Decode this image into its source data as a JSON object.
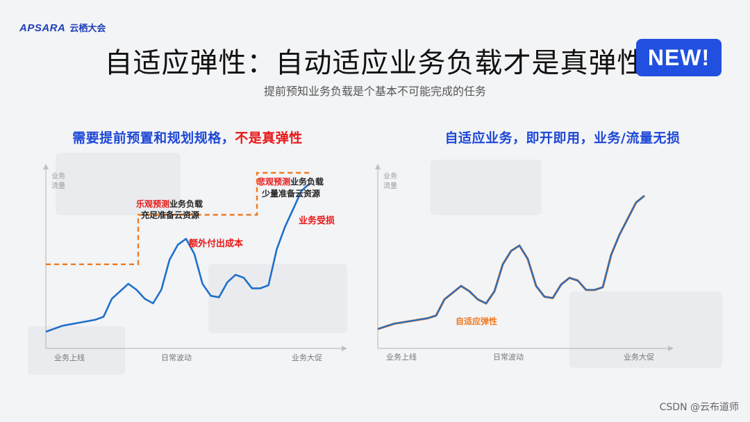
{
  "brand": {
    "mark": "APSARA",
    "name": "云栖大会"
  },
  "title": "自适应弹性：自动适应业务负载才是真弹性",
  "badge": "NEW!",
  "subtitle": "提前预知业务负载是个基本不可能完成的任务",
  "left_panel": {
    "heading_part1": "需要提前预置和规划规格，",
    "heading_part2": "不是真弹性"
  },
  "right_panel": {
    "heading": "自适应业务，即开即用，业务/流量无损"
  },
  "watermark": "CSDN @云布道师",
  "colors": {
    "workload": "#1f6fc9",
    "provision": "#f07a1f",
    "accent_blue": "#1d47d6",
    "accent_red": "#e81616",
    "badge": "#2150e0"
  },
  "chart_data": [
    {
      "type": "line",
      "ylabel": [
        "业务",
        "流量"
      ],
      "x_labels": [
        "业务上线",
        "日常波动",
        "业务大促"
      ],
      "series": [
        {
          "name": "",
          "style": "solid",
          "color": "#1f6fc9",
          "values": [
            0.0,
            0.02,
            0.04,
            0.05,
            0.06,
            0.07,
            0.08,
            0.1,
            0.22,
            0.27,
            0.32,
            0.28,
            0.22,
            0.19,
            0.28,
            0.48,
            0.58,
            0.62,
            0.52,
            0.32,
            0.24,
            0.23,
            0.33,
            0.38,
            0.36,
            0.29,
            0.29,
            0.31,
            0.55,
            0.7,
            0.82,
            0.94,
            0.99
          ]
        },
        {
          "name": "",
          "style": "dashed",
          "color": "#f07a1f",
          "steps": [
            {
              "from": 0.0,
              "to": 0.35,
              "level": 0.45
            },
            {
              "from": 0.35,
              "to": 0.8,
              "level": 0.78
            },
            {
              "from": 0.8,
              "to": 1.0,
              "level": 1.06
            }
          ]
        }
      ],
      "annotations": [
        {
          "red": "乐观预测",
          "black": "业务负载"
        },
        {
          "black": "充足准备云资源"
        },
        {
          "red": "额外付出成本"
        },
        {
          "red": "悲观预测",
          "black": "业务负载"
        },
        {
          "black": "少量准备云资源"
        },
        {
          "red": "业务受损"
        }
      ]
    },
    {
      "type": "line",
      "ylabel": [
        "业务",
        "流量"
      ],
      "x_labels": [
        "业务上线",
        "日常波动",
        "业务大促"
      ],
      "series": [
        {
          "name": "",
          "style": "solid",
          "color": "#1f6fc9",
          "values": [
            0.0,
            0.02,
            0.04,
            0.05,
            0.06,
            0.07,
            0.08,
            0.1,
            0.22,
            0.27,
            0.32,
            0.28,
            0.22,
            0.19,
            0.28,
            0.48,
            0.58,
            0.62,
            0.52,
            0.32,
            0.24,
            0.23,
            0.33,
            0.38,
            0.36,
            0.29,
            0.29,
            0.31,
            0.55,
            0.7,
            0.82,
            0.94,
            0.99
          ]
        },
        {
          "name": "",
          "style": "solid",
          "color": "#f07a1f",
          "offset": 0.01,
          "values": [
            0.0,
            0.02,
            0.04,
            0.05,
            0.06,
            0.07,
            0.08,
            0.1,
            0.22,
            0.27,
            0.32,
            0.28,
            0.22,
            0.19,
            0.28,
            0.48,
            0.58,
            0.62,
            0.52,
            0.32,
            0.24,
            0.23,
            0.33,
            0.38,
            0.36,
            0.29,
            0.29,
            0.31,
            0.55,
            0.7,
            0.82,
            0.94,
            0.99
          ]
        }
      ],
      "annotations": [
        {
          "orange": "自适应弹性"
        }
      ]
    }
  ]
}
